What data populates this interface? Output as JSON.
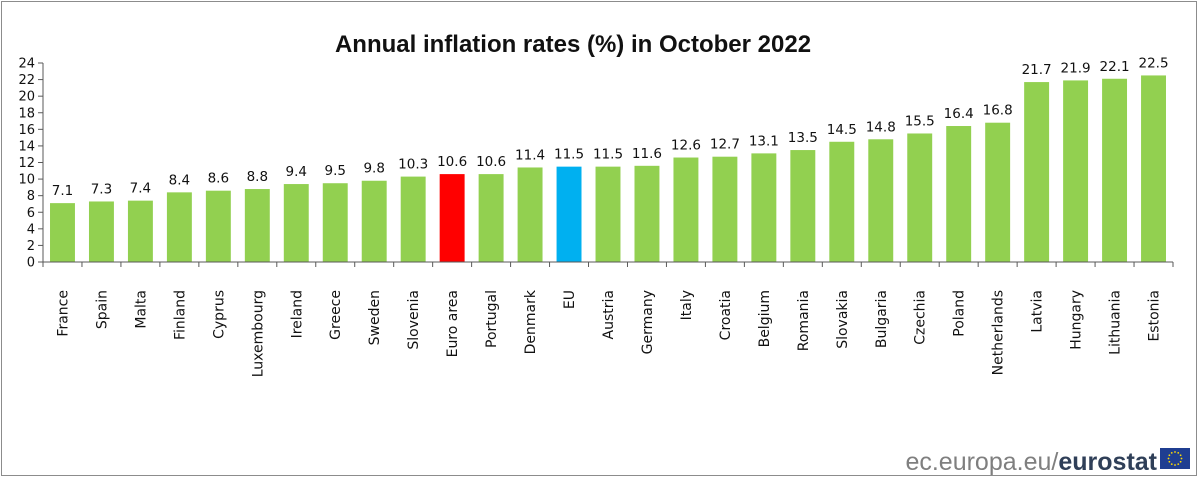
{
  "chart_data": {
    "type": "bar",
    "title": "Annual inflation rates (%) in October 2022",
    "xlabel": "",
    "ylabel": "",
    "ylim": [
      0,
      24
    ],
    "yticks": [
      0,
      2,
      4,
      6,
      8,
      10,
      12,
      14,
      16,
      18,
      20,
      22,
      24
    ],
    "grid": false,
    "categories": [
      "France",
      "Spain",
      "Malta",
      "Finland",
      "Cyprus",
      "Luxembourg",
      "Ireland",
      "Greece",
      "Sweden",
      "Slovenia",
      "Euro area",
      "Portugal",
      "Denmark",
      "EU",
      "Austria",
      "Germany",
      "Italy",
      "Croatia",
      "Belgium",
      "Romania",
      "Slovakia",
      "Bulgaria",
      "Czechia",
      "Poland",
      "Netherlands",
      "Latvia",
      "Hungary",
      "Lithuania",
      "Estonia"
    ],
    "values": [
      7.1,
      7.3,
      7.4,
      8.4,
      8.6,
      8.8,
      9.4,
      9.5,
      9.8,
      10.3,
      10.6,
      10.6,
      11.4,
      11.5,
      11.5,
      11.6,
      12.6,
      12.7,
      13.1,
      13.5,
      14.5,
      14.8,
      15.5,
      16.4,
      16.8,
      21.7,
      21.9,
      22.1,
      22.5
    ],
    "value_labels": [
      "7.1",
      "7.3",
      "7.4",
      "8.4",
      "8.6",
      "8.8",
      "9.4",
      "9.5",
      "9.8",
      "10.3",
      "10.6",
      "10.6",
      "11.4",
      "11.5",
      "11.5",
      "11.6",
      "12.6",
      "12.7",
      "13.1",
      "13.5",
      "14.5",
      "14.8",
      "15.5",
      "16.4",
      "16.8",
      "21.7",
      "21.9",
      "22.1",
      "22.5"
    ],
    "colors": {
      "default": "#92d050",
      "Euro area": "#ff0000",
      "EU": "#00b0f0"
    }
  },
  "footer": {
    "source_light": "ec.europa.eu/",
    "source_bold": "eurostat",
    "logo_icon": "eu-flag-icon"
  }
}
